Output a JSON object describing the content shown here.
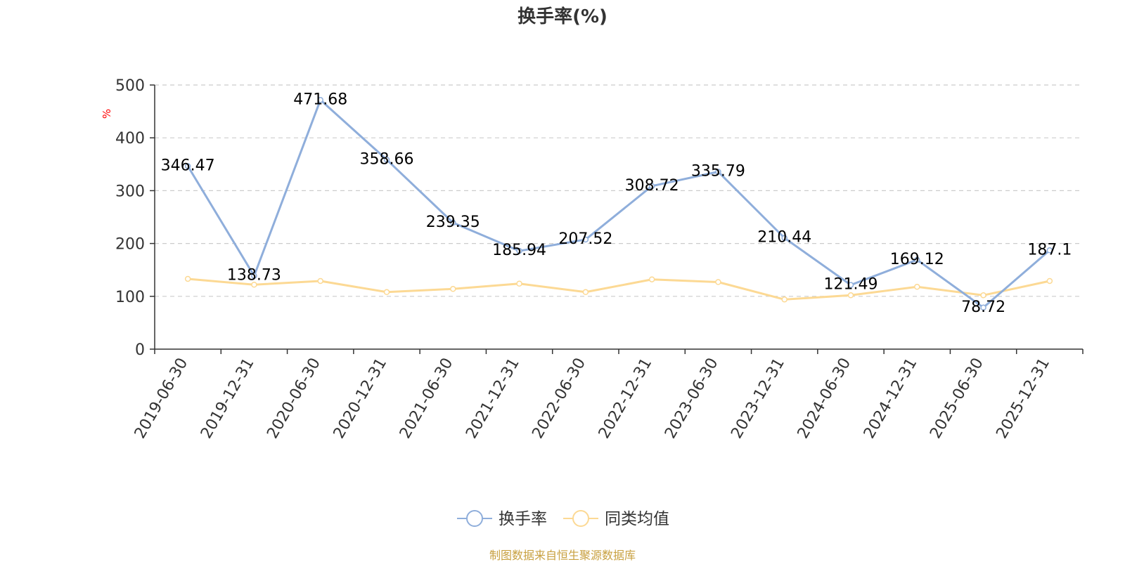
{
  "chart_data": {
    "type": "line",
    "title": "换手率(%)",
    "ylabel": "%",
    "xlabel": "",
    "ylim": [
      0,
      500
    ],
    "yticks": [
      0,
      100,
      200,
      300,
      400,
      500
    ],
    "grid": true,
    "legend_position": "bottom-center",
    "categories": [
      "2019-06-30",
      "2019-12-31",
      "2020-06-30",
      "2020-12-31",
      "2021-06-30",
      "2021-12-31",
      "2022-06-30",
      "2022-12-31",
      "2023-06-30",
      "2023-12-31",
      "2024-06-30",
      "2024-12-31",
      "2025-06-30",
      "2025-12-31"
    ],
    "series": [
      {
        "name": "换手率",
        "color": "#8FAEDB",
        "show_labels": true,
        "values": [
          346.47,
          138.73,
          471.68,
          358.66,
          239.35,
          185.94,
          207.52,
          308.72,
          335.79,
          210.44,
          121.49,
          169.12,
          78.72,
          187.1
        ],
        "labels": [
          "346.47",
          "138.73",
          "471.68",
          "358.66",
          "239.35",
          "185.94",
          "207.52",
          "308.72",
          "335.79",
          "210.44",
          "121.49",
          "169.12",
          "78.72",
          "187.1"
        ]
      },
      {
        "name": "同类均值",
        "color": "#FCD994",
        "show_labels": false,
        "values": [
          133,
          122,
          129,
          108,
          114,
          124,
          108,
          132,
          127,
          94,
          102,
          118,
          102,
          129
        ]
      }
    ],
    "source_note": "制图数据来自恒生聚源数据库"
  },
  "colors": {
    "axis": "#333333",
    "grid": "#cccccc",
    "unit_label": "#ff0000",
    "source_note": "#C8A040",
    "title": "#333333"
  }
}
